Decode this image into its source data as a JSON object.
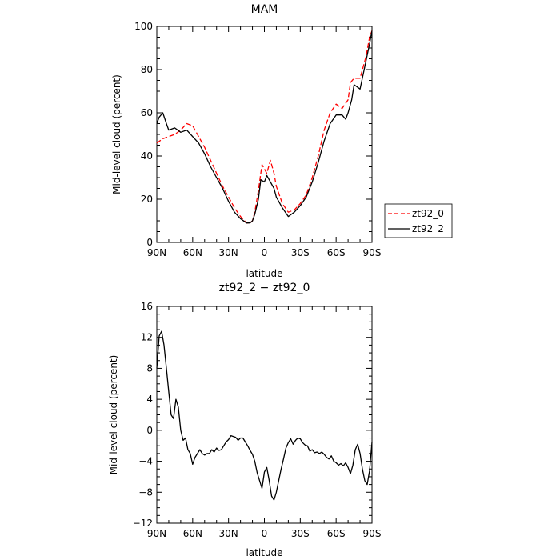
{
  "chart_data": [
    {
      "type": "line",
      "title": "MAM",
      "xlabel": "latitude",
      "ylabel": "Mid-level cloud (percent)",
      "xticks": [
        "90N",
        "60N",
        "30N",
        "0",
        "30S",
        "60S",
        "90S"
      ],
      "xlim": [
        90,
        -90
      ],
      "ylim": [
        0,
        100
      ],
      "yticks": [
        "0",
        "20",
        "40",
        "60",
        "80",
        "100"
      ],
      "legend": "right",
      "series": [
        {
          "name": "zt92_0",
          "color": "#ff0000",
          "dash": "dashed",
          "x": [
            90,
            85,
            80,
            75,
            70,
            65,
            60,
            55,
            50,
            45,
            40,
            35,
            30,
            25,
            20,
            15,
            12,
            10,
            8,
            5,
            2,
            0,
            -2,
            -5,
            -8,
            -10,
            -15,
            -20,
            -25,
            -30,
            -35,
            -40,
            -45,
            -50,
            -55,
            -60,
            -65,
            -70,
            -72,
            -75,
            -80,
            -85,
            -88,
            -90
          ],
          "y": [
            46,
            48,
            49,
            50,
            52,
            55,
            54,
            49,
            44,
            38,
            32,
            26,
            21,
            16,
            12,
            9,
            9,
            10,
            14,
            24,
            36,
            34,
            32,
            38,
            32,
            26,
            18,
            14,
            15,
            18,
            22,
            30,
            40,
            52,
            60,
            64,
            62,
            66,
            74,
            76,
            76,
            86,
            95,
            98
          ]
        },
        {
          "name": "zt92_2",
          "color": "#000000",
          "dash": "solid",
          "x": [
            90,
            88,
            85,
            82,
            80,
            75,
            70,
            65,
            60,
            55,
            50,
            45,
            40,
            35,
            30,
            25,
            20,
            15,
            12,
            10,
            8,
            5,
            3,
            0,
            -2,
            -5,
            -8,
            -10,
            -15,
            -20,
            -25,
            -30,
            -35,
            -40,
            -45,
            -50,
            -55,
            -60,
            -65,
            -68,
            -70,
            -73,
            -75,
            -80,
            -85,
            -88,
            -90
          ],
          "y": [
            55,
            58,
            60,
            55,
            52,
            53,
            51,
            52,
            49,
            46,
            41,
            35,
            30,
            25,
            19,
            14,
            11,
            9,
            9,
            10,
            13,
            20,
            29,
            28,
            31,
            28,
            25,
            21,
            16,
            12,
            14,
            17,
            21,
            28,
            37,
            47,
            55,
            59,
            59,
            57,
            60,
            66,
            73,
            71,
            84,
            92,
            98
          ]
        }
      ]
    },
    {
      "type": "line",
      "title": "zt92_2 − zt92_0",
      "xlabel": "latitude",
      "ylabel": "Mid-level cloud (percent)",
      "xticks": [
        "90N",
        "60N",
        "30N",
        "0",
        "30S",
        "60S",
        "90S"
      ],
      "xlim": [
        90,
        -90
      ],
      "ylim": [
        -12,
        16
      ],
      "yticks": [
        "−12",
        "−8",
        "−4",
        "0",
        "4",
        "8",
        "12",
        "16"
      ],
      "series": [
        {
          "color": "#000000",
          "dash": "solid",
          "x": [
            90,
            88,
            86,
            84,
            82,
            80,
            78,
            76,
            74,
            72,
            70,
            68,
            66,
            64,
            62,
            60,
            58,
            56,
            54,
            52,
            50,
            48,
            46,
            44,
            42,
            40,
            38,
            36,
            34,
            32,
            30,
            28,
            26,
            24,
            22,
            20,
            18,
            16,
            14,
            12,
            10,
            8,
            6,
            4,
            2,
            0,
            -2,
            -4,
            -6,
            -8,
            -10,
            -12,
            -14,
            -16,
            -18,
            -20,
            -22,
            -24,
            -26,
            -28,
            -30,
            -32,
            -34,
            -36,
            -38,
            -40,
            -42,
            -44,
            -46,
            -48,
            -50,
            -52,
            -54,
            -56,
            -58,
            -60,
            -62,
            -64,
            -66,
            -68,
            -70,
            -72,
            -74,
            -76,
            -78,
            -80,
            -82,
            -84,
            -86,
            -88,
            -90
          ],
          "y": [
            8.0,
            12.2,
            12.8,
            11.0,
            8.0,
            5.0,
            2.0,
            1.5,
            4.0,
            3.0,
            0.0,
            -1.3,
            -1.0,
            -2.5,
            -3.0,
            -4.4,
            -3.5,
            -3.0,
            -2.5,
            -3.0,
            -3.2,
            -3.0,
            -3.0,
            -2.5,
            -2.8,
            -2.3,
            -2.6,
            -2.5,
            -2.0,
            -1.5,
            -1.2,
            -0.7,
            -0.8,
            -0.9,
            -1.3,
            -1.0,
            -1.0,
            -1.5,
            -2.0,
            -2.6,
            -3.1,
            -4.0,
            -5.5,
            -6.5,
            -7.5,
            -5.4,
            -4.8,
            -6.5,
            -8.5,
            -9.0,
            -8.0,
            -6.5,
            -5.0,
            -3.7,
            -2.3,
            -1.6,
            -1.1,
            -1.8,
            -1.3,
            -1.0,
            -1.1,
            -1.6,
            -1.9,
            -2.0,
            -2.7,
            -2.5,
            -2.9,
            -2.8,
            -3.0,
            -2.8,
            -3.1,
            -3.5,
            -3.7,
            -3.3,
            -4.0,
            -4.2,
            -4.5,
            -4.3,
            -4.6,
            -4.2,
            -4.8,
            -5.6,
            -4.5,
            -2.5,
            -1.8,
            -3.0,
            -5.0,
            -6.5,
            -7.0,
            -5.2,
            -1.5
          ]
        }
      ]
    }
  ]
}
